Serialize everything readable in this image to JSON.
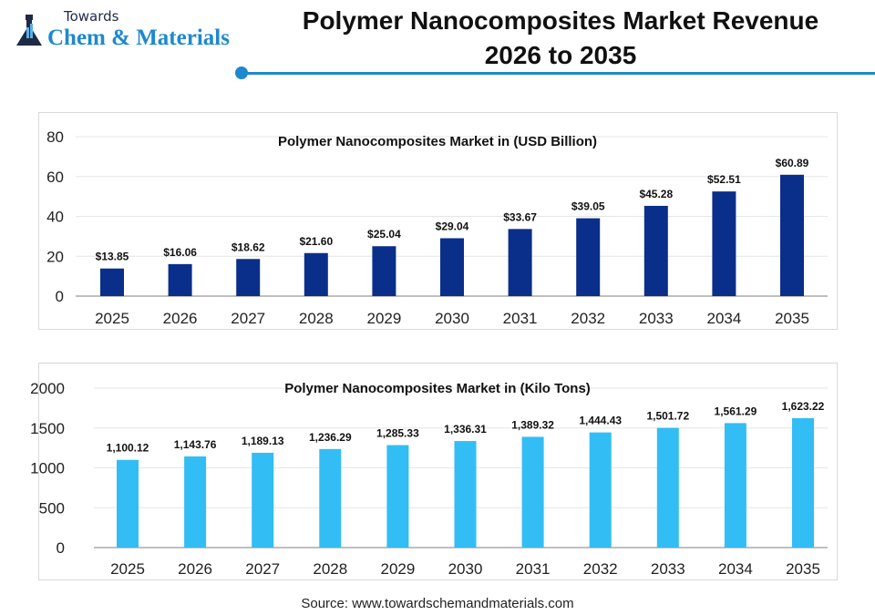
{
  "logo": {
    "top": "Towards",
    "main": "Chem & Materials"
  },
  "header": {
    "title_line1": "Polymer Nanocomposites Market Revenue",
    "title_line2": "2026 to 2035",
    "accent": "#1e88d0"
  },
  "source": "Source: www.towardschemandmaterials.com",
  "chart_data": [
    {
      "type": "bar",
      "title": "Polymer Nanocomposites Market in (USD Billion)",
      "categories": [
        "2025",
        "2026",
        "2027",
        "2028",
        "2029",
        "2030",
        "2031",
        "2032",
        "2033",
        "2034",
        "2035"
      ],
      "values": [
        13.85,
        16.06,
        18.62,
        21.6,
        25.04,
        29.04,
        33.67,
        39.05,
        45.28,
        52.51,
        60.89
      ],
      "labels": [
        "$13.85",
        "$16.06",
        "$18.62",
        "$21.60",
        "$25.04",
        "$29.04",
        "$33.67",
        "$39.05",
        "$45.28",
        "$52.51",
        "$60.89"
      ],
      "ylim": [
        0,
        80
      ],
      "yticks": [
        "0",
        "20",
        "40",
        "60",
        "80"
      ],
      "grid": true,
      "color": "#0a2f8a",
      "xlabel": "",
      "ylabel": ""
    },
    {
      "type": "bar",
      "title": "Polymer Nanocomposites Market in (Kilo Tons)",
      "categories": [
        "2025",
        "2026",
        "2027",
        "2028",
        "2029",
        "2030",
        "2031",
        "2032",
        "2033",
        "2034",
        "2035"
      ],
      "values": [
        1100.12,
        1143.76,
        1189.13,
        1236.29,
        1285.33,
        1336.31,
        1389.32,
        1444.43,
        1501.72,
        1561.29,
        1623.22
      ],
      "labels": [
        "1,100.12",
        "1,143.76",
        "1,189.13",
        "1,236.29",
        "1,285.33",
        "1,336.31",
        "1,389.32",
        "1,444.43",
        "1,501.72",
        "1,561.29",
        "1,623.22"
      ],
      "ylim": [
        0,
        2000
      ],
      "yticks": [
        "0",
        "500",
        "1000",
        "1500",
        "2000"
      ],
      "grid": true,
      "color": "#33bdf5",
      "xlabel": "",
      "ylabel": ""
    }
  ]
}
